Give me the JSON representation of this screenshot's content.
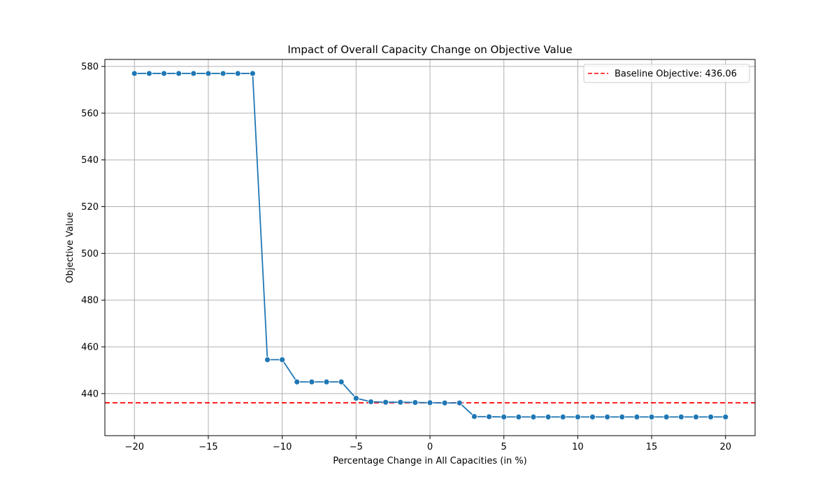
{
  "chart_data": {
    "type": "line",
    "title": "Impact of Overall Capacity Change on Objective Value",
    "xlabel": "Percentage Change in All Capacities (in %)",
    "ylabel": "Objective Value",
    "xlim": [
      -22,
      22
    ],
    "ylim": [
      422,
      583
    ],
    "x_ticks": [
      -20,
      -15,
      -10,
      -5,
      0,
      5,
      10,
      15,
      20
    ],
    "y_ticks": [
      440,
      460,
      480,
      500,
      520,
      540,
      560,
      580
    ],
    "x_tick_labels": [
      "−20",
      "−15",
      "−10",
      "−5",
      "0",
      "5",
      "10",
      "15",
      "20"
    ],
    "y_tick_labels": [
      "440",
      "460",
      "480",
      "500",
      "520",
      "540",
      "560",
      "580"
    ],
    "grid": true,
    "legend_position": "top-right",
    "series": [
      {
        "color": "#1f77b4",
        "marker": "circle",
        "x": [
          -20,
          -19,
          -18,
          -17,
          -16,
          -15,
          -14,
          -13,
          -12,
          -11,
          -10,
          -9,
          -8,
          -7,
          -6,
          -5,
          -4,
          -3,
          -2,
          -1,
          0,
          1,
          2,
          3,
          4,
          5,
          6,
          7,
          8,
          9,
          10,
          11,
          12,
          13,
          14,
          15,
          16,
          17,
          18,
          19,
          20
        ],
        "y": [
          577,
          577,
          577,
          577,
          577,
          577,
          577,
          577,
          577,
          454.5,
          454.5,
          445,
          445,
          445,
          445,
          438,
          436.5,
          436.3,
          436.3,
          436.2,
          436.1,
          436.0,
          436.0,
          430.2,
          430.1,
          430,
          430,
          430,
          430,
          430,
          430,
          430,
          430,
          430,
          430,
          430,
          430,
          430,
          430,
          430,
          430
        ]
      }
    ],
    "baseline": {
      "value": 436.06,
      "label": "Baseline Objective: 436.06",
      "color": "#ff0000",
      "style": "dashed"
    }
  }
}
